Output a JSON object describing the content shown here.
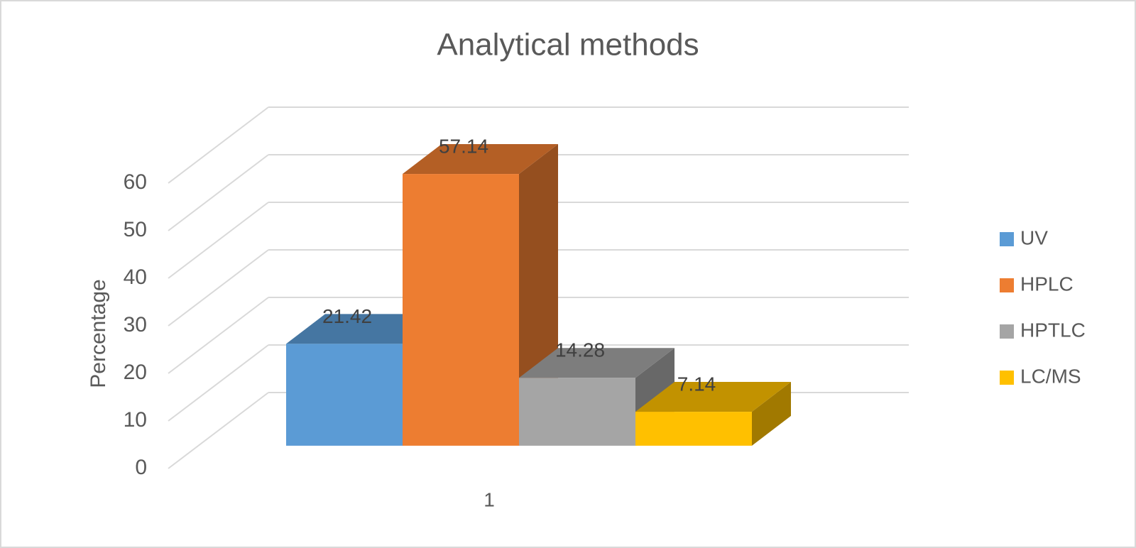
{
  "chart_data": {
    "type": "bar3d",
    "title": "Analytical methods",
    "y_label": "Percentage",
    "categories": [
      "1"
    ],
    "series": [
      {
        "name": "UV",
        "color": "#5b9bd5",
        "values": [
          21.42
        ]
      },
      {
        "name": "HPLC",
        "color": "#ed7d31",
        "values": [
          57.14
        ]
      },
      {
        "name": "HPTLC",
        "color": "#a5a5a5",
        "values": [
          14.28
        ]
      },
      {
        "name": "LC/MS",
        "color": "#ffc000",
        "values": [
          7.14
        ]
      }
    ],
    "ylim": [
      0,
      60
    ],
    "yticks": [
      0,
      10,
      20,
      30,
      40,
      50,
      60
    ],
    "grid": true,
    "legend": "right"
  }
}
